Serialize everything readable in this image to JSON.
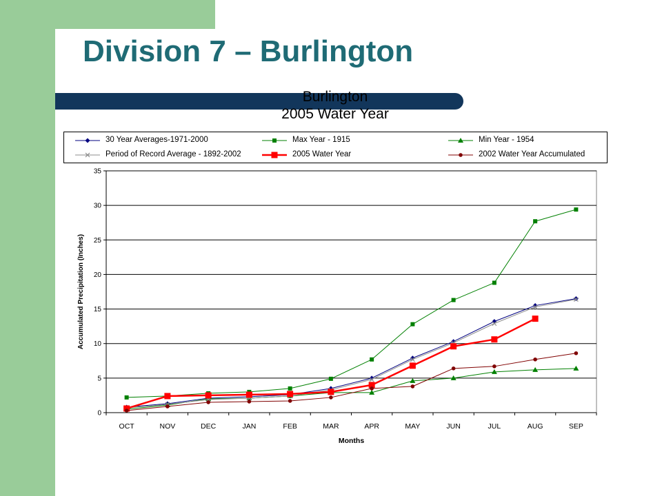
{
  "slide": {
    "title": "Division 7 – Burlington",
    "colors": {
      "band": "#99cc99",
      "title": "#1f6b75",
      "bar": "#12365b"
    }
  },
  "chart_data": {
    "type": "line",
    "title": "Burlington",
    "subtitle": "2005 Water Year",
    "xlabel": "Months",
    "ylabel": "Accumulated Precipitation (Inches)",
    "categories": [
      "OCT",
      "NOV",
      "DEC",
      "JAN",
      "FEB",
      "MAR",
      "APR",
      "MAY",
      "JUN",
      "JUL",
      "AUG",
      "SEP"
    ],
    "ylim": [
      0,
      35
    ],
    "yticks": [
      0,
      5,
      10,
      15,
      20,
      25,
      30,
      35
    ],
    "grid": true,
    "legend": "top",
    "series": [
      {
        "name": "30 Year Averages-1971-2000",
        "color": "#000080",
        "marker": "diamond",
        "values": [
          0.8,
          1.3,
          2.1,
          2.3,
          2.6,
          3.5,
          5.0,
          7.9,
          10.3,
          13.2,
          15.5,
          16.5
        ]
      },
      {
        "name": "Max Year - 1915",
        "color": "#008000",
        "marker": "square",
        "values": [
          2.2,
          2.4,
          2.8,
          3.0,
          3.5,
          4.9,
          7.7,
          12.8,
          16.3,
          18.8,
          27.7,
          29.4
        ]
      },
      {
        "name": "Min Year - 1954",
        "color": "#008000",
        "marker": "triangle",
        "values": [
          0.5,
          1.1,
          2.0,
          2.1,
          2.4,
          2.9,
          2.9,
          4.6,
          5.0,
          5.9,
          6.2,
          6.4
        ]
      },
      {
        "name": "Period of Record Average - 1892-2002",
        "color": "#8c8c8c",
        "marker": "x",
        "values": [
          0.7,
          1.2,
          1.9,
          2.1,
          2.4,
          3.3,
          4.8,
          7.7,
          10.1,
          12.9,
          15.3,
          16.4
        ]
      },
      {
        "name": "2005 Water Year",
        "color": "#ff0000",
        "marker": "bigsquare",
        "values": [
          0.6,
          2.4,
          2.5,
          2.6,
          2.7,
          3.0,
          4.0,
          6.8,
          9.6,
          10.6,
          13.6,
          null
        ]
      },
      {
        "name": "2002 Water Year Accumulated",
        "color": "#800000",
        "marker": "circle",
        "values": [
          0.3,
          0.9,
          1.5,
          1.6,
          1.7,
          2.2,
          3.5,
          3.8,
          6.4,
          6.7,
          7.7,
          8.6
        ]
      }
    ]
  }
}
